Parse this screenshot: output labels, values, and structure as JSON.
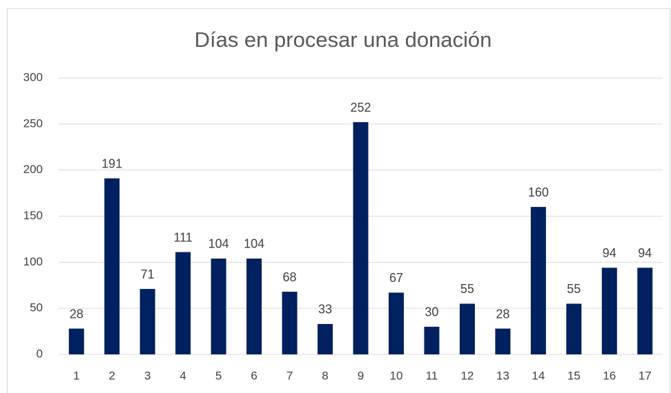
{
  "chart_data": {
    "type": "bar",
    "title": "Días en procesar una donación",
    "categories": [
      "1",
      "2",
      "3",
      "4",
      "5",
      "6",
      "7",
      "8",
      "9",
      "10",
      "11",
      "12",
      "13",
      "14",
      "15",
      "16",
      "17"
    ],
    "values": [
      28,
      191,
      71,
      111,
      104,
      104,
      68,
      33,
      252,
      67,
      30,
      55,
      28,
      160,
      55,
      94,
      94
    ],
    "color": "#002060",
    "ylim": [
      0,
      300
    ],
    "yticks": [
      0,
      50,
      100,
      150,
      200,
      250,
      300
    ],
    "grid": true,
    "data_labels": true
  }
}
